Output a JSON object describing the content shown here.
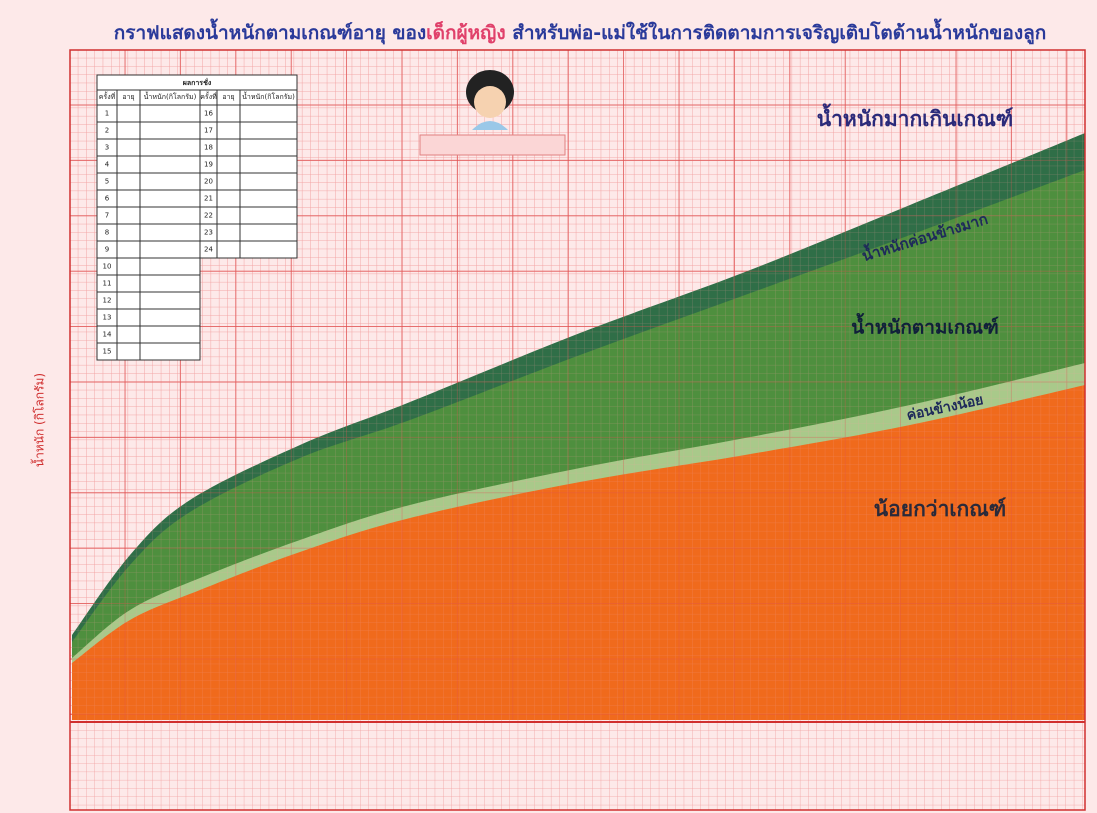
{
  "header": {
    "title_before": "กราฟแสดงน้ำหนักตามเกณฑ์อายุ ของ",
    "title_highlight": "เด็กผู้หญิง",
    "title_after": " สำหรับพ่อ-แม่ใช้ในการติดตามการเจริญเติบโตด้านน้ำหนักของลูก"
  },
  "zones": {
    "over": "น้ำหนักมากเกินเกณฑ์",
    "rather_high": "น้ำหนักค่อนข้างมาก",
    "normal": "น้ำหนักตามเกณฑ์",
    "rather_low": "ค่อนข้างน้อย",
    "under": "น้อยกว่าเกณฑ์"
  },
  "axis": {
    "y_label": "น้ำหนัก (กิโลกรัม)"
  },
  "table": {
    "title": "ผลการชั่ง",
    "columns": [
      "ครั้งที่",
      "อายุ",
      "น้ำหนัก(กิโลกรัม)"
    ],
    "left_rows": [
      "1",
      "2",
      "3",
      "4",
      "5",
      "6",
      "7",
      "8",
      "9",
      "10",
      "11",
      "12",
      "13",
      "14",
      "15"
    ],
    "right_rows": [
      "16",
      "17",
      "18",
      "19",
      "20",
      "21",
      "22",
      "23",
      "24"
    ]
  }
}
